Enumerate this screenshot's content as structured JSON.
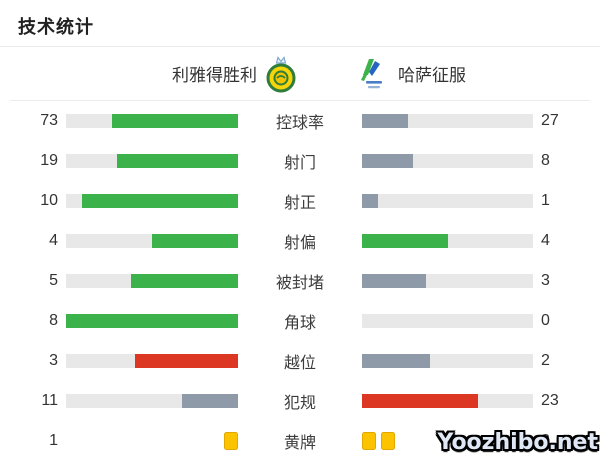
{
  "page": {
    "title": "技术统计"
  },
  "teams": {
    "home": {
      "name": "利雅得胜利",
      "logo_icon": "al-nassr-crest"
    },
    "away": {
      "name": "哈萨征服",
      "logo_icon": "al-hazem-crest"
    }
  },
  "colors": {
    "green": "#3cb34a",
    "gray": "#8e9aa7",
    "red": "#dc3722",
    "track": "#e8e8e8",
    "card_yellow": "#fcc400"
  },
  "chart_data": {
    "type": "bar",
    "title": "技术统计",
    "legend": [
      "利雅得胜利",
      "哈萨征服"
    ],
    "categories": [
      "控球率",
      "射门",
      "射正",
      "射偏",
      "被封堵",
      "角球",
      "越位",
      "犯规",
      "黄牌"
    ],
    "series": [
      {
        "name": "利雅得胜利",
        "values": [
          73,
          19,
          10,
          4,
          5,
          8,
          3,
          11,
          1
        ]
      },
      {
        "name": "哈萨征服",
        "values": [
          27,
          8,
          1,
          4,
          3,
          0,
          2,
          23,
          2
        ]
      }
    ]
  },
  "stats": {
    "rows": [
      {
        "type": "bars",
        "label": "控球率",
        "home": 73,
        "away": 27,
        "home_color": "green",
        "away_color": "gray"
      },
      {
        "type": "bars",
        "label": "射门",
        "home": 19,
        "away": 8,
        "home_color": "green",
        "away_color": "gray"
      },
      {
        "type": "bars",
        "label": "射正",
        "home": 10,
        "away": 1,
        "home_color": "green",
        "away_color": "gray"
      },
      {
        "type": "bars",
        "label": "射偏",
        "home": 4,
        "away": 4,
        "home_color": "green",
        "away_color": "green"
      },
      {
        "type": "bars",
        "label": "被封堵",
        "home": 5,
        "away": 3,
        "home_color": "green",
        "away_color": "gray"
      },
      {
        "type": "bars",
        "label": "角球",
        "home": 8,
        "away": 0,
        "home_color": "green",
        "away_color": "gray"
      },
      {
        "type": "bars",
        "label": "越位",
        "home": 3,
        "away": 2,
        "home_color": "red",
        "away_color": "gray"
      },
      {
        "type": "bars",
        "label": "犯规",
        "home": 11,
        "away": 23,
        "home_color": "gray",
        "away_color": "red"
      },
      {
        "type": "cards",
        "label": "黄牌",
        "home": 1,
        "away": 2
      }
    ]
  },
  "watermark": {
    "text": "Yoozhibo.net"
  }
}
